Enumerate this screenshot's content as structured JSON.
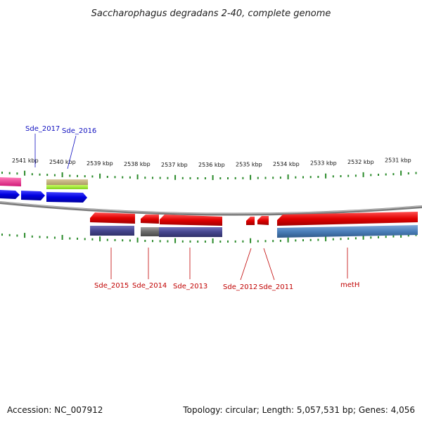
{
  "title": "Saccharophagus degradans 2-40, complete genome",
  "footer": {
    "accession": "Accession: NC_007912",
    "stats": "Topology: circular; Length: 5,057,531 bp; Genes: 4,056"
  },
  "colors": {
    "forward_label": "#1010c0",
    "reverse_label": "#c00000",
    "tick": "#2a8a2a",
    "backbone": "#808080"
  },
  "ticks": [
    {
      "label": "2541 kbp"
    },
    {
      "label": "2540 kbp"
    },
    {
      "label": "2539 kbp"
    },
    {
      "label": "2538 kbp"
    },
    {
      "label": "2537 kbp"
    },
    {
      "label": "2536 kbp"
    },
    {
      "label": "2535 kbp"
    },
    {
      "label": "2534 kbp"
    },
    {
      "label": "2533 kbp"
    },
    {
      "label": "2532 kbp"
    },
    {
      "label": "2531 kbp"
    }
  ],
  "gene_labels": {
    "forward": [
      "Sde_2017",
      "Sde_2016"
    ],
    "reverse": [
      "Sde_2015",
      "Sde_2014",
      "Sde_2013",
      "Sde_2012",
      "Sde_2011",
      "metH"
    ]
  }
}
